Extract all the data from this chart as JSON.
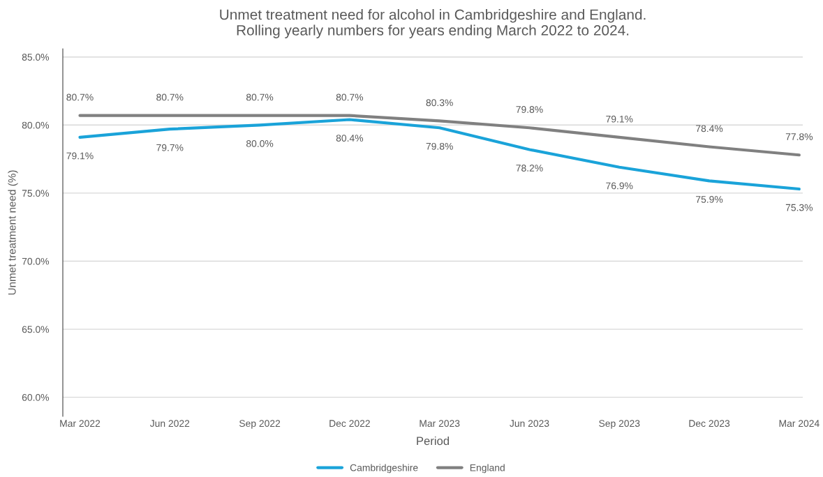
{
  "chart_data": {
    "type": "line",
    "title": "Unmet treatment need for alcohol in Cambridgeshire and England.\nRolling yearly numbers for years ending March 2022 to 2024.",
    "xlabel": "Period",
    "ylabel": "Unmet treatment need (%)",
    "categories": [
      "Mar 2022",
      "Jun 2022",
      "Sep 2022",
      "Dec 2022",
      "Mar 2023",
      "Jun 2023",
      "Sep 2023",
      "Dec 2023",
      "Mar 2024"
    ],
    "series": [
      {
        "name": "Cambridgeshire",
        "color": "#1aa3d9",
        "values": [
          79.1,
          79.7,
          80.0,
          80.4,
          79.8,
          78.2,
          76.9,
          75.9,
          75.3
        ],
        "value_labels": [
          "79.1%",
          "79.7%",
          "80.0%",
          "80.4%",
          "79.8%",
          "78.2%",
          "76.9%",
          "75.9%",
          "75.3%"
        ]
      },
      {
        "name": "England",
        "color": "#808080",
        "values": [
          80.7,
          80.7,
          80.7,
          80.7,
          80.3,
          79.8,
          79.1,
          78.4,
          77.8
        ],
        "value_labels": [
          "80.7%",
          "80.7%",
          "80.7%",
          "80.7%",
          "80.3%",
          "79.8%",
          "79.1%",
          "78.4%",
          "77.8%"
        ]
      }
    ],
    "ylim": [
      58.6,
      85.6
    ],
    "yticks": [
      {
        "value": 60,
        "label": "60.0%"
      },
      {
        "value": 65,
        "label": "65.0%"
      },
      {
        "value": 70,
        "label": "70.0%"
      },
      {
        "value": 75,
        "label": "75.0%"
      },
      {
        "value": 80,
        "label": "80.0%"
      },
      {
        "value": 85,
        "label": "85.0%"
      }
    ],
    "grid": "y",
    "legend": "bottom",
    "marker": "none",
    "line_style": "solid"
  }
}
